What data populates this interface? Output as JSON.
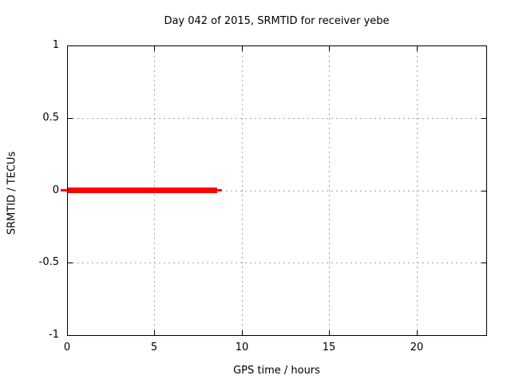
{
  "chart_data": {
    "type": "line",
    "title": "Day 042 of 2015, SRMTID for receiver yebe",
    "xlabel": "GPS time / hours",
    "ylabel": "SRMTID / TECUs",
    "xlim": [
      0,
      24
    ],
    "ylim": [
      -1,
      1
    ],
    "xticks": [
      {
        "v": 0,
        "label": "0"
      },
      {
        "v": 5,
        "label": "5"
      },
      {
        "v": 10,
        "label": "10"
      },
      {
        "v": 15,
        "label": "15"
      },
      {
        "v": 20,
        "label": "20"
      }
    ],
    "yticks": [
      {
        "v": 1,
        "label": "1"
      },
      {
        "v": 0.5,
        "label": "0.5"
      },
      {
        "v": 0,
        "label": "0"
      },
      {
        "v": -0.5,
        "label": "-0.5"
      },
      {
        "v": -1,
        "label": "-1"
      }
    ],
    "grid": true,
    "legend": "none",
    "series": [
      {
        "name": "SRMTID",
        "color": "#ff0000",
        "y": 0,
        "x_start": 0,
        "x_end": 8.6,
        "thin_underlay_x_start": -0.37,
        "thin_underlay_x_end": 8.87,
        "points": [
          [
            0,
            0
          ],
          [
            8.6,
            0
          ]
        ]
      }
    ],
    "colors": {
      "background": "#ffffff",
      "border": "#000000",
      "grid": "#a6a6a6",
      "text": "#000000",
      "series": "#ff0000"
    }
  }
}
